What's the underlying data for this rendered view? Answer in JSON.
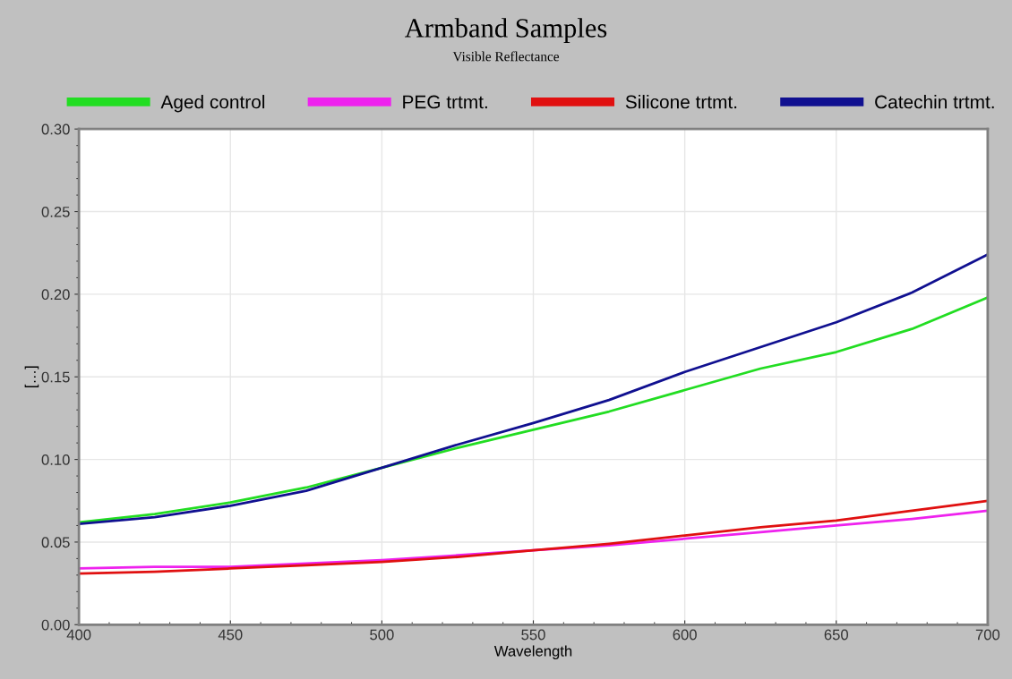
{
  "chart_data": {
    "type": "line",
    "title": "Armband Samples",
    "subtitle": "Visible Reflectance",
    "xlabel": "Wavelength",
    "ylabel": "[…]",
    "x": [
      400,
      425,
      450,
      475,
      500,
      525,
      550,
      575,
      600,
      625,
      650,
      675,
      700
    ],
    "series": [
      {
        "name": "Aged control",
        "color": "#22dd22",
        "values": [
          0.062,
          0.067,
          0.074,
          0.083,
          0.095,
          0.107,
          0.118,
          0.129,
          0.142,
          0.155,
          0.165,
          0.179,
          0.198
        ]
      },
      {
        "name": "PEG trtmt.",
        "color": "#ee22ee",
        "values": [
          0.034,
          0.035,
          0.035,
          0.037,
          0.039,
          0.042,
          0.045,
          0.048,
          0.052,
          0.056,
          0.06,
          0.064,
          0.069
        ]
      },
      {
        "name": "Silicone trtmt.",
        "color": "#e01010",
        "values": [
          0.031,
          0.032,
          0.034,
          0.036,
          0.038,
          0.041,
          0.045,
          0.049,
          0.054,
          0.059,
          0.063,
          0.069,
          0.075
        ]
      },
      {
        "name": "Catechin trtmt.",
        "color": "#101090",
        "values": [
          0.061,
          0.065,
          0.072,
          0.081,
          0.095,
          0.109,
          0.122,
          0.136,
          0.153,
          0.168,
          0.183,
          0.201,
          0.224
        ]
      }
    ],
    "xlim": [
      400,
      700
    ],
    "xticks": [
      400,
      450,
      500,
      550,
      600,
      650,
      700
    ],
    "ylim": [
      0,
      0.3
    ],
    "yticks": [
      {
        "value": 0,
        "label": "0.00"
      },
      {
        "value": 0.05,
        "label": "0.05"
      },
      {
        "value": 0.1,
        "label": "0.10"
      },
      {
        "value": 0.15,
        "label": "0.15"
      },
      {
        "value": 0.2,
        "label": "0.20"
      },
      {
        "value": 0.25,
        "label": "0.25"
      },
      {
        "value": 0.3,
        "label": "0.30"
      }
    ],
    "grid": true,
    "legend": "top",
    "marker": "none",
    "line_style": "solid"
  }
}
